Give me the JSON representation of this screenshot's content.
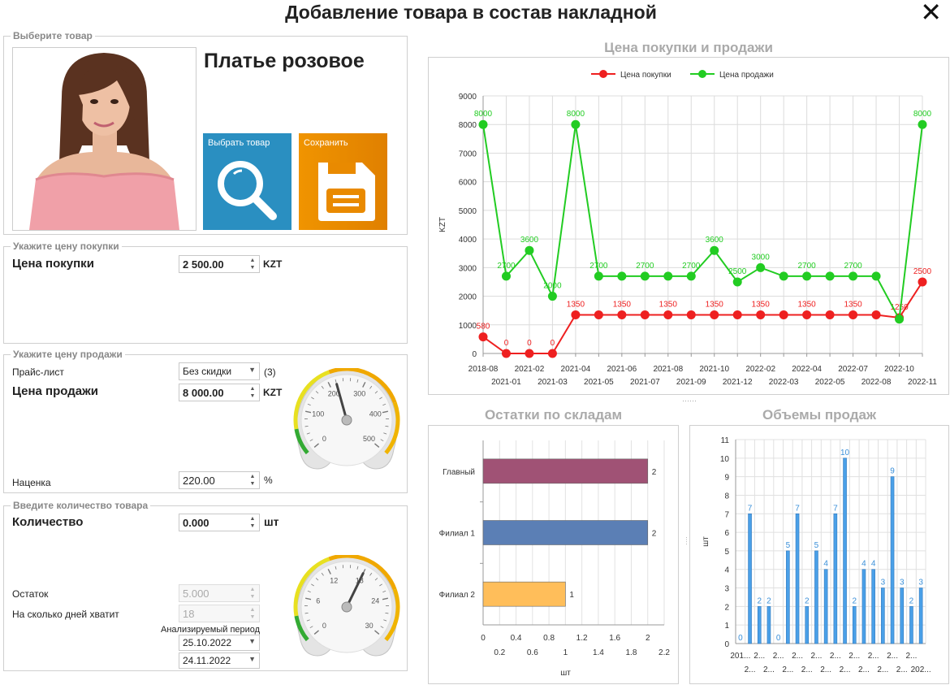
{
  "window": {
    "title": "Добавление товара в состав накладной",
    "close_glyph": "✕"
  },
  "product": {
    "group_caption": "Выберите товар",
    "name": "Платье розовое",
    "select_button": "Выбрать товар",
    "save_button": "Сохранить",
    "select_icon": "magnifier-icon",
    "save_icon": "floppy-disk-icon"
  },
  "purchase": {
    "group_caption": "Укажите цену покупки",
    "label": "Цена покупки",
    "value": "2 500.00",
    "unit": "KZT"
  },
  "sale": {
    "group_caption": "Укажите цену продажи",
    "pricelist_label": "Прайс-лист",
    "pricelist_value": "Без скидки",
    "pricelist_count": "(3)",
    "label": "Цена продажи",
    "value": "8 000.00",
    "unit": "KZT",
    "markup_label": "Наценка",
    "markup_value": "220.00",
    "markup_unit": "%",
    "gauge": {
      "min": 0,
      "max": 500,
      "value": 220,
      "ticks": [
        "0",
        "100",
        "200",
        "300",
        "400",
        "500"
      ]
    }
  },
  "quantity": {
    "group_caption": "Введите количество товара",
    "label": "Количество",
    "value": "0.000",
    "unit": "шт",
    "stock_label": "Остаток",
    "stock_value": "5.000",
    "days_label": "На сколько дней хватит",
    "days_value": "18",
    "period_label": "Анализируемый период",
    "date_from": "25.10.2022",
    "date_to": "24.11.2022",
    "gauge": {
      "min": 0,
      "max": 30,
      "value": 18,
      "ticks": [
        "0",
        "6",
        "12",
        "18",
        "24",
        "30"
      ]
    }
  },
  "colors": {
    "select_tile": "#2a8fc1",
    "save_tile": "#e98a00",
    "purchase_series": "#ee2020",
    "sale_series": "#22cc22"
  },
  "chart_data": [
    {
      "type": "line",
      "title": "Цена покупки и продажи",
      "ylabel": "KZT",
      "ylim": [
        0,
        9000
      ],
      "yticks": [
        "0",
        "1000",
        "2000",
        "3000",
        "4000",
        "5000",
        "6000",
        "7000",
        "8000",
        "9000"
      ],
      "categories": [
        "2018-08",
        "2021-01",
        "2021-02",
        "2021-03",
        "2021-04",
        "2021-05",
        "2021-06",
        "2021-07",
        "2021-08",
        "2021-09",
        "2021-10",
        "2021-12",
        "2022-02",
        "2022-03",
        "2022-04",
        "2022-05",
        "2022-07",
        "2022-08",
        "2022-10",
        "2022-11"
      ],
      "legend": "top-center",
      "series": [
        {
          "name": "Цена покупки",
          "color": "#ee2020",
          "values": [
            580,
            0,
            0,
            0,
            1350,
            1350,
            1350,
            1350,
            1350,
            1350,
            1350,
            1350,
            1350,
            1350,
            1350,
            1350,
            1350,
            1350,
            1250,
            2500
          ],
          "labels": [
            "580",
            "0",
            "0",
            "0",
            "1350",
            "",
            "1350",
            "",
            "1350",
            "",
            "1350",
            "",
            "1350",
            "",
            "1350",
            "",
            "1350",
            "",
            "1250",
            "2500"
          ]
        },
        {
          "name": "Цена продажи",
          "color": "#22cc22",
          "values": [
            8000,
            2700,
            3600,
            2000,
            8000,
            2700,
            2700,
            2700,
            2700,
            2700,
            3600,
            2500,
            3000,
            2700,
            2700,
            2700,
            2700,
            2700,
            1200,
            8000
          ],
          "labels": [
            "8000",
            "2700",
            "3600",
            "2000",
            "8000",
            "2700",
            "",
            "2700",
            "",
            "2700",
            "3600",
            "2500",
            "3000",
            "",
            "2700",
            "",
            "2700",
            "",
            "",
            "8000"
          ]
        }
      ]
    },
    {
      "type": "bar",
      "orientation": "horizontal",
      "title": "Остатки по складам",
      "xlabel": "шт",
      "xlim": [
        0,
        2.2
      ],
      "xticks_top": [
        "0",
        "0.4",
        "0.8",
        "1.2",
        "1.6",
        "2"
      ],
      "xticks_bottom": [
        "0.2",
        "0.6",
        "1",
        "1.4",
        "1.8",
        "2.2"
      ],
      "categories": [
        "Главный",
        "Филиал 1",
        "Филиал 2"
      ],
      "values": [
        2,
        2,
        1
      ],
      "colors": [
        "#a05275",
        "#5b7fb5",
        "#ffbe5a"
      ]
    },
    {
      "type": "bar",
      "title": "Объемы продаж",
      "ylabel": "шт",
      "ylim": [
        0,
        11
      ],
      "yticks": [
        "0",
        "1",
        "2",
        "3",
        "4",
        "5",
        "6",
        "7",
        "8",
        "9",
        "10",
        "11"
      ],
      "values": [
        0,
        7,
        2,
        2,
        0,
        5,
        7,
        2,
        5,
        4,
        7,
        10,
        2,
        4,
        4,
        3,
        9,
        3,
        2,
        3
      ],
      "xtick_row1": [
        "201...",
        "2...",
        "2...",
        "2...",
        "2...",
        "2...",
        "2...",
        "2...",
        "2...",
        "2..."
      ],
      "xtick_row2": [
        "2...",
        "2...",
        "2...",
        "2...",
        "2...",
        "2...",
        "2...",
        "2...",
        "2...",
        "202..."
      ],
      "color": "#4aa0e8"
    }
  ]
}
